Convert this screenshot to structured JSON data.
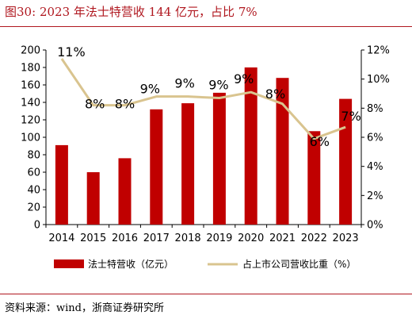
{
  "header": {
    "figure_label": "图30:",
    "title": "2023 年法士特营收 144 亿元，占比 7%"
  },
  "footer": {
    "source": "资料来源：wind，浙商证券研究所"
  },
  "chart_data": {
    "type": "bar",
    "categories": [
      "2014",
      "2015",
      "2016",
      "2017",
      "2018",
      "2019",
      "2020",
      "2021",
      "2022",
      "2023"
    ],
    "series": [
      {
        "name": "法士特营收（亿元）",
        "type": "bar",
        "axis": "left",
        "color": "#c00000",
        "values": [
          91,
          60,
          76,
          132,
          139,
          151,
          180,
          168,
          107,
          144
        ]
      },
      {
        "name": "占上市公司营收比重（%）",
        "type": "line",
        "axis": "right",
        "color": "#d9c48f",
        "values": [
          11.4,
          8.2,
          8.2,
          8.8,
          8.8,
          8.7,
          9.1,
          8.3,
          5.9,
          6.7
        ],
        "data_labels": [
          "11%",
          "8%",
          "8%",
          "9%",
          "9%",
          "9%",
          "9%",
          "8%",
          "6%",
          "7%"
        ]
      }
    ],
    "y_left": {
      "min": 0,
      "max": 200,
      "step": 20,
      "ticks": [
        "0",
        "20",
        "40",
        "60",
        "80",
        "100",
        "120",
        "140",
        "160",
        "180",
        "200"
      ]
    },
    "y_right": {
      "min": 0,
      "max": 12,
      "step": 2,
      "ticks": [
        "0%",
        "2%",
        "4%",
        "6%",
        "8%",
        "10%",
        "12%"
      ]
    },
    "grid": false,
    "legend_position": "bottom"
  }
}
